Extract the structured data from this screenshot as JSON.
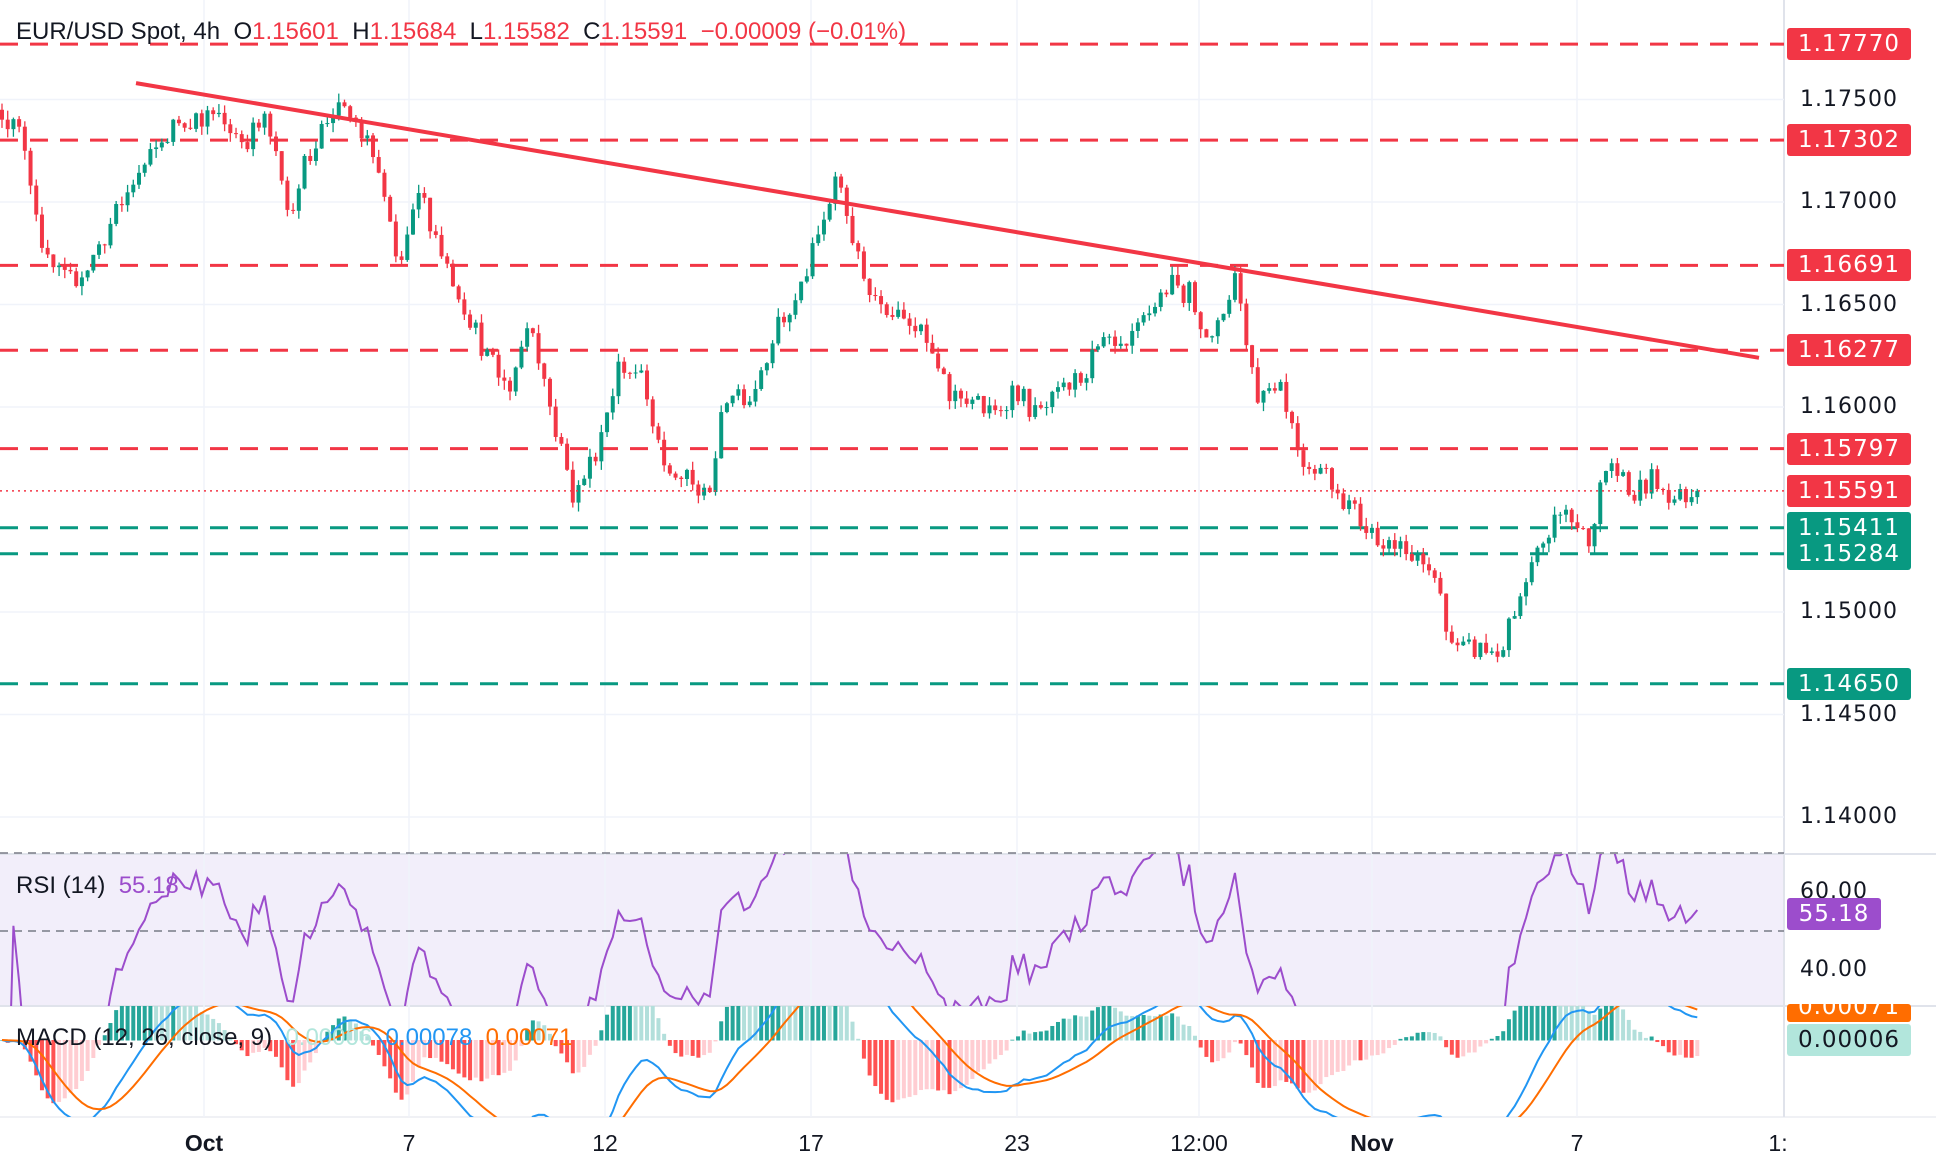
{
  "header": {
    "symbol": "EUR/USD Spot, 4h",
    "o_label": "O",
    "open": "1.15601",
    "h_label": "H",
    "high": "1.15684",
    "l_label": "L",
    "low": "1.15582",
    "c_label": "C",
    "close": "1.15591",
    "change": "−0.00009 (−0.01%)"
  },
  "colors": {
    "up": "#089981",
    "down": "#f23645",
    "rsi": "#9c4dcc",
    "macd": "#2196f3",
    "signal": "#ff6d00"
  },
  "chart_data": {
    "type": "candlestick",
    "price_ticks": [
      "1.17500",
      "1.17000",
      "1.16500",
      "1.16000",
      "1.15000",
      "1.14500",
      "1.14000"
    ],
    "price_tick_values": [
      1.175,
      1.17,
      1.165,
      1.16,
      1.15,
      1.145,
      1.14
    ],
    "resistance_levels": [
      {
        "value": 1.1777,
        "label": "1.17770"
      },
      {
        "value": 1.17302,
        "label": "1.17302"
      },
      {
        "value": 1.16691,
        "label": "1.16691"
      },
      {
        "value": 1.16277,
        "label": "1.16277"
      },
      {
        "value": 1.15797,
        "label": "1.15797"
      }
    ],
    "support_levels": [
      {
        "value": 1.15411,
        "label": "1.15411"
      },
      {
        "value": 1.15284,
        "label": "1.15284"
      },
      {
        "value": 1.1465,
        "label": "1.14650"
      }
    ],
    "last_price": {
      "value": 1.15591,
      "label": "1.15591"
    },
    "trendline": {
      "start": 1.1758,
      "end": 1.1624
    },
    "x_ticks": [
      "Oct",
      "7",
      "12",
      "17",
      "23",
      "12:00",
      "Nov",
      "7",
      "1:"
    ],
    "close_path": [
      1.1745,
      1.173,
      1.167,
      1.166,
      1.167,
      1.169,
      1.171,
      1.1725,
      1.174,
      1.1742,
      1.174,
      1.173,
      1.174,
      1.1695,
      1.1725,
      1.1745,
      1.174,
      1.172,
      1.1665,
      1.1705,
      1.1675,
      1.165,
      1.1625,
      1.1608,
      1.1645,
      1.1595,
      1.1555,
      1.158,
      1.162,
      1.1615,
      1.157,
      1.1565,
      1.1555,
      1.161,
      1.1605,
      1.1635,
      1.165,
      1.168,
      1.1713,
      1.1665,
      1.165,
      1.1648,
      1.163,
      1.1605,
      1.1605,
      1.1595,
      1.161,
      1.1595,
      1.1605,
      1.1615,
      1.163,
      1.1625,
      1.1645,
      1.166,
      1.1655,
      1.163,
      1.1665,
      1.1605,
      1.1615,
      1.1575,
      1.157,
      1.1555,
      1.154,
      1.1535,
      1.1525,
      1.152,
      1.148,
      1.1482,
      1.148,
      1.1505,
      1.1535,
      1.155,
      1.1535,
      1.1575,
      1.1555,
      1.1565,
      1.1555,
      1.1559
    ],
    "rsi": {
      "label": "RSI (14)",
      "value": "55.18",
      "ticks": [
        "60.00",
        "40.00"
      ],
      "levels": [
        70,
        50,
        30
      ]
    },
    "macd": {
      "label": "MACD (12, 26, close, 9)",
      "histogram": "0.00006",
      "macd": "0.00078",
      "signal": "0.00071",
      "axis_signal": "0.00071",
      "axis_hist": "0.00006"
    }
  }
}
